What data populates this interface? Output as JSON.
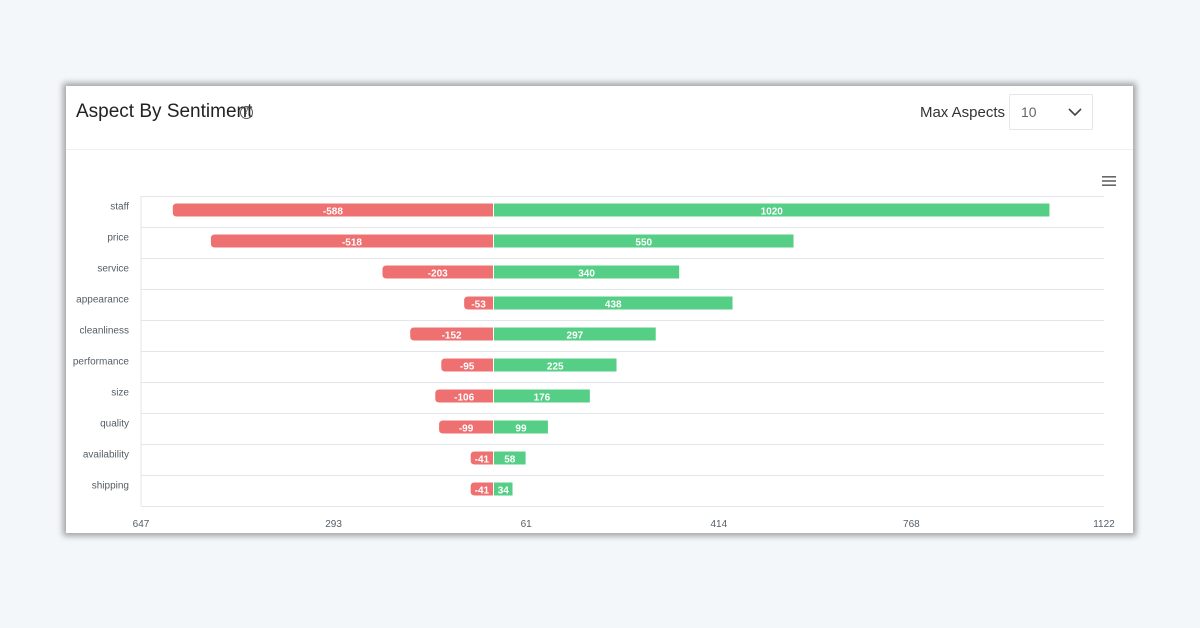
{
  "widget": {
    "title": "Aspect By Sentiment",
    "help_glyph": "?",
    "max_aspects_label": "Max Aspects",
    "max_aspects_value": "10",
    "icons": {
      "help": "question-circle-icon",
      "dropdown": "chevron-down-icon",
      "menu": "hamburger-menu-icon"
    }
  },
  "chart_data": {
    "type": "bar",
    "orientation": "horizontal",
    "stacked": "diverging",
    "categories": [
      "staff",
      "price",
      "service",
      "appearance",
      "cleanliness",
      "performance",
      "size",
      "quality",
      "availability",
      "shipping"
    ],
    "series": [
      {
        "color": "#ee7070",
        "values": [
          -588,
          -518,
          -203,
          -53,
          -152,
          -95,
          -106,
          -99,
          -41,
          -41
        ]
      },
      {
        "color": "#55cf85",
        "values": [
          1020,
          550,
          340,
          438,
          297,
          225,
          176,
          99,
          58,
          34
        ]
      }
    ],
    "x_tick_labels": [
      "647",
      "293",
      "61",
      "414",
      "768",
      "1122"
    ],
    "xlim": [
      -647,
      1122
    ],
    "grid": true,
    "legend": "none"
  }
}
